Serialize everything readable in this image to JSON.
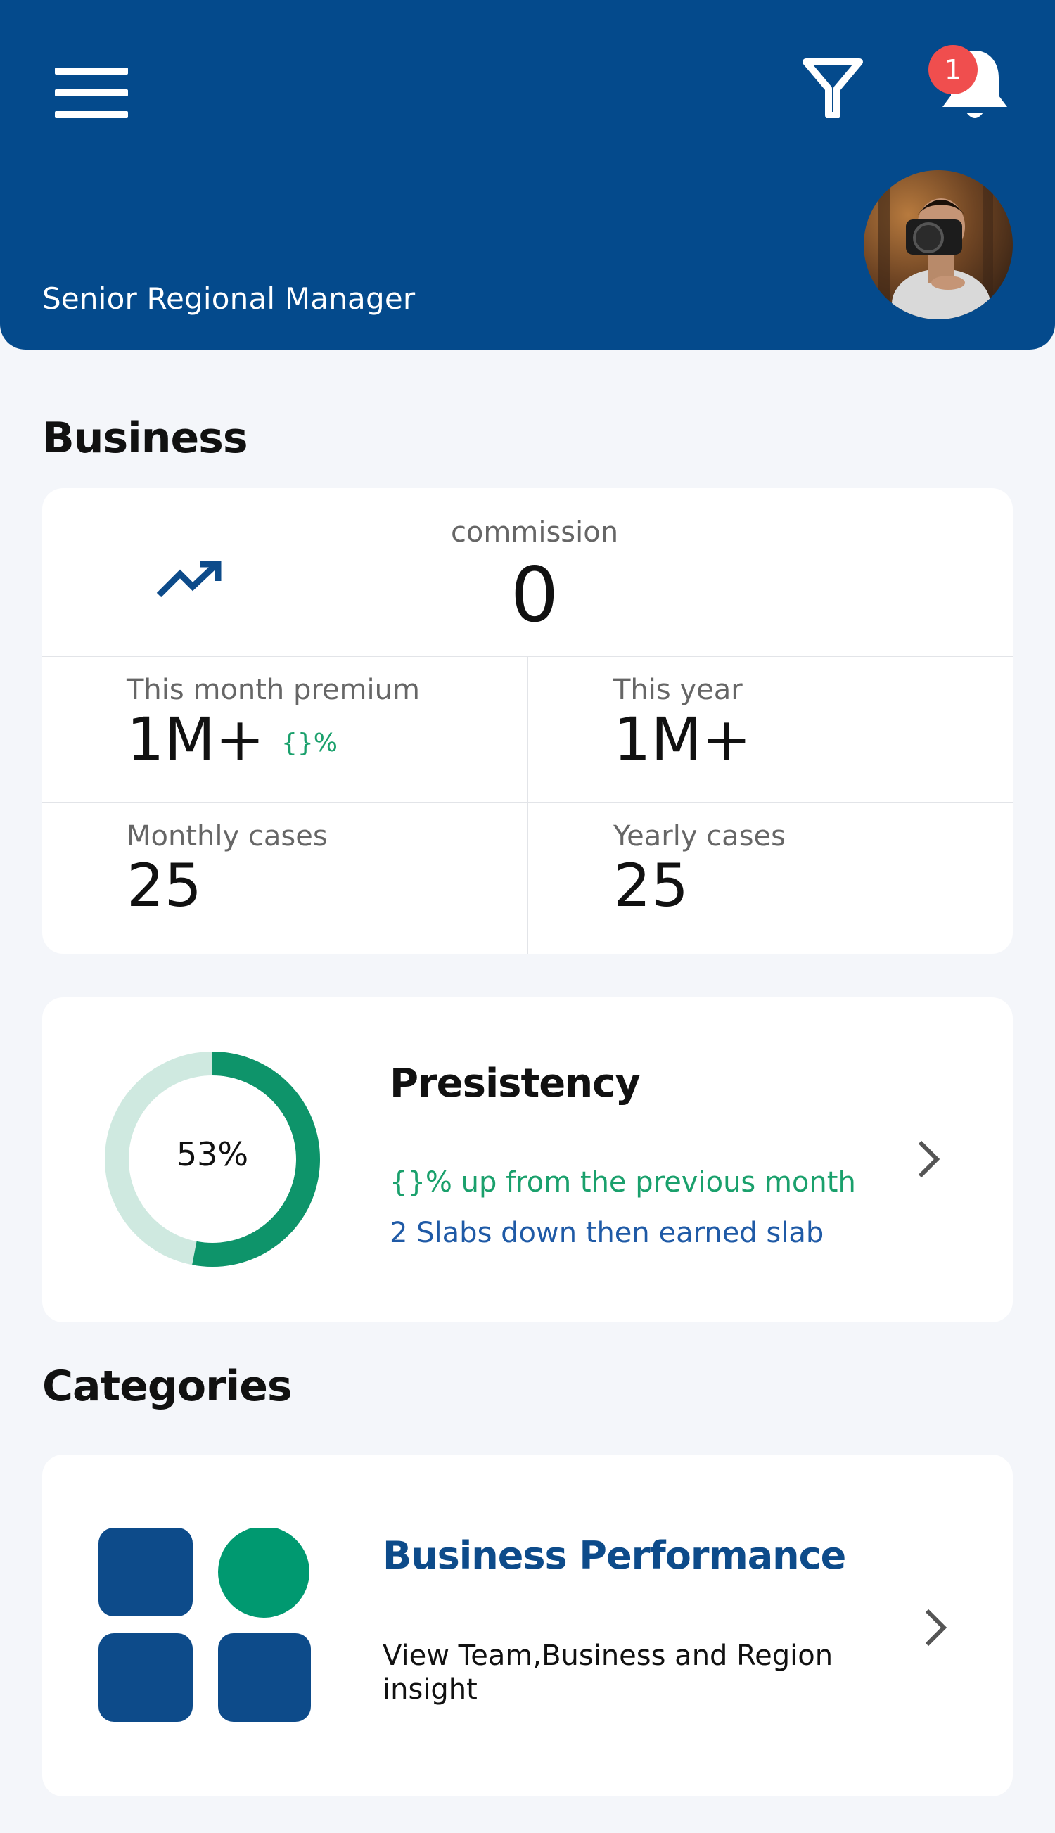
{
  "header": {
    "role_title": "Senior Regional Manager",
    "notification_count": "1",
    "icons": {
      "menu": "menu-icon",
      "filter": "filter-icon",
      "bell": "bell-icon",
      "avatar": "user-avatar"
    },
    "colors": {
      "background": "#044a8c",
      "badge": "#f04e4e"
    }
  },
  "business": {
    "section_title": "Business",
    "commission_label": "commission",
    "commission_value": "0",
    "trend_icon": "trending-up-icon",
    "stats": {
      "month_premium_label": "This month premium",
      "month_premium_value": "1M+",
      "month_premium_delta": "{}%",
      "year_label": "This year",
      "year_value": "1M+",
      "monthly_cases_label": "Monthly cases",
      "monthly_cases_value": "25",
      "yearly_cases_label": "Yearly cases",
      "yearly_cases_value": "25"
    }
  },
  "persistency": {
    "title": "Presistency",
    "percent_label": "53%",
    "percent_value": 0.53,
    "up_text": "{}% up from the previous month",
    "slab_text": "2 Slabs down then earned slab",
    "colors": {
      "progress": "#0e946a",
      "track": "#cfe9e0",
      "up_text": "#1aa06c",
      "slab_text": "#1f5aa6"
    }
  },
  "categories": {
    "section_title": "Categories",
    "items": [
      {
        "title": "Business Performance",
        "description": "View Team,Business and Region insight",
        "icon": "grid-dashboard-icon",
        "colors": {
          "square": "#0d4b8a",
          "circle": "#009970"
        }
      }
    ]
  }
}
